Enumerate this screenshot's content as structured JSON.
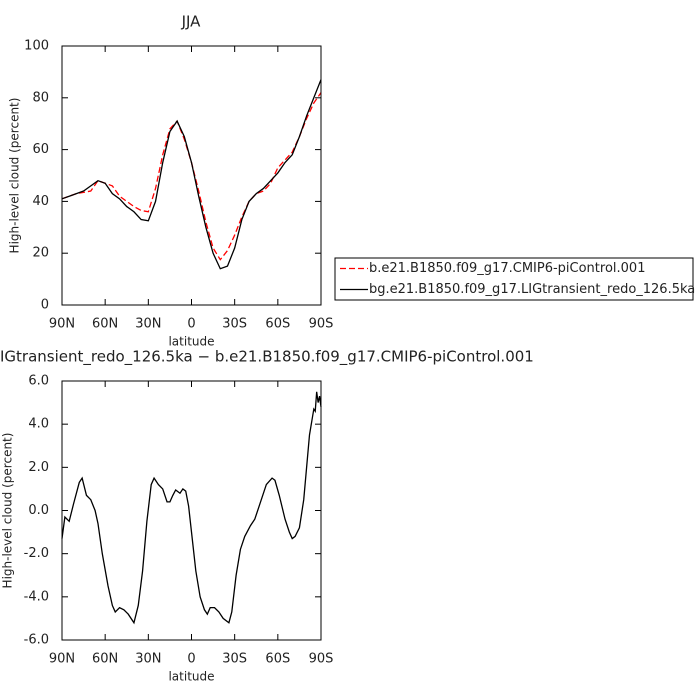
{
  "chart_data": [
    {
      "type": "line",
      "title": "JJA",
      "x_label": "latitude",
      "y_label": "High-level cloud (percent)",
      "x": [
        90,
        85,
        80,
        75,
        70,
        65,
        60,
        55,
        50,
        45,
        40,
        35,
        30,
        25,
        20,
        15,
        10,
        5,
        0,
        -5,
        -10,
        -15,
        -20,
        -25,
        -30,
        -35,
        -40,
        -45,
        -50,
        -55,
        -60,
        -65,
        -70,
        -75,
        -80,
        -85,
        -90
      ],
      "series": [
        {
          "name": "b.e21.B1850.f09_g17.CMIP6-piControl.001",
          "color": "#ff0000",
          "line_style": "dashed",
          "values": [
            41,
            42,
            43,
            43.5,
            44,
            48,
            47,
            46,
            42,
            40,
            38,
            36.5,
            36,
            45,
            58,
            68,
            71,
            64,
            55,
            44,
            32,
            22,
            17.5,
            21,
            27,
            34,
            40,
            43,
            44,
            47,
            53,
            56,
            59,
            65,
            72,
            78,
            82
          ]
        },
        {
          "name": "bg.e21.B1850.f09_g17.LIGtransient_redo_126.5ka",
          "color": "#000000",
          "line_style": "solid",
          "values": [
            41,
            42,
            43,
            44,
            46,
            48,
            47,
            43,
            41,
            38,
            36,
            33,
            32.5,
            40,
            55,
            67,
            71,
            65,
            55,
            42,
            30,
            20,
            14,
            15,
            22,
            33,
            40,
            43,
            45,
            48,
            51,
            55,
            58,
            65,
            73,
            80,
            87
          ]
        }
      ],
      "xlim": [
        90,
        -90
      ],
      "xticks": [
        {
          "value": 90,
          "label": "90N"
        },
        {
          "value": 60,
          "label": "60N"
        },
        {
          "value": 30,
          "label": "30N"
        },
        0,
        {
          "value": -30,
          "label": "30S"
        },
        {
          "value": -60,
          "label": "60S"
        },
        {
          "value": -90,
          "label": "90S"
        }
      ],
      "ylim": [
        0,
        100
      ],
      "yticks": [
        0,
        20,
        40,
        60,
        80,
        100
      ],
      "legend": "right"
    },
    {
      "type": "line",
      "title": "IGtransient_redo_126.5ka − b.e21.B1850.f09_g17.CMIP6-piControl.001",
      "x_label": "latitude",
      "y_label": "High-level cloud (percent)",
      "x": [
        90,
        88,
        85,
        82,
        78,
        76,
        73,
        70,
        67,
        65,
        62,
        58,
        55,
        53,
        50,
        47,
        44,
        40,
        37,
        34,
        31,
        28,
        26,
        23,
        20,
        17,
        15,
        13,
        11,
        8,
        6,
        4,
        2,
        0,
        -3,
        -6,
        -9,
        -11,
        -13,
        -16,
        -19,
        -22,
        -26,
        -28,
        -31,
        -34,
        -37,
        -41,
        -44,
        -47,
        -52,
        -56,
        -58,
        -61,
        -65,
        -68,
        -70,
        -72,
        -75,
        -78,
        -80,
        -82,
        -84,
        -85,
        -86,
        -87,
        -88,
        -89,
        -90
      ],
      "values": [
        -1.3,
        -0.3,
        -0.5,
        0.3,
        1.3,
        1.5,
        0.7,
        0.5,
        0,
        -0.6,
        -2,
        -3.5,
        -4.4,
        -4.7,
        -4.5,
        -4.6,
        -4.8,
        -5.2,
        -4.4,
        -2.8,
        -0.5,
        1.2,
        1.5,
        1.2,
        1.0,
        0.4,
        0.4,
        0.7,
        0.95,
        0.8,
        1.0,
        0.9,
        0.2,
        -1.0,
        -2.8,
        -4.0,
        -4.6,
        -4.8,
        -4.5,
        -4.5,
        -4.7,
        -5.0,
        -5.2,
        -4.7,
        -3.0,
        -1.8,
        -1.2,
        -0.7,
        -0.4,
        0.2,
        1.2,
        1.5,
        1.4,
        0.7,
        -0.4,
        -1.0,
        -1.3,
        -1.2,
        -0.8,
        0.5,
        2,
        3.5,
        4.3,
        4.7,
        4.6,
        5.5,
        5.0,
        5.3,
        4.8
      ],
      "color": "#000000",
      "line_style": "solid",
      "xlim": [
        90,
        -90
      ],
      "xticks": [
        {
          "value": 90,
          "label": "90N"
        },
        {
          "value": 60,
          "label": "60N"
        },
        {
          "value": 30,
          "label": "30N"
        },
        0,
        {
          "value": -30,
          "label": "30S"
        },
        {
          "value": -60,
          "label": "60S"
        },
        {
          "value": -90,
          "label": "90S"
        }
      ],
      "ylim": [
        -6,
        6
      ],
      "yticks": [
        {
          "value": -6,
          "label": "-6.0"
        },
        {
          "value": -4,
          "label": "-4.0"
        },
        {
          "value": -2,
          "label": "-2.0"
        },
        {
          "value": 0,
          "label": "0.0"
        },
        {
          "value": 2,
          "label": "2.0"
        },
        {
          "value": 4,
          "label": "4.0"
        },
        {
          "value": 6,
          "label": "6.0"
        }
      ]
    }
  ]
}
